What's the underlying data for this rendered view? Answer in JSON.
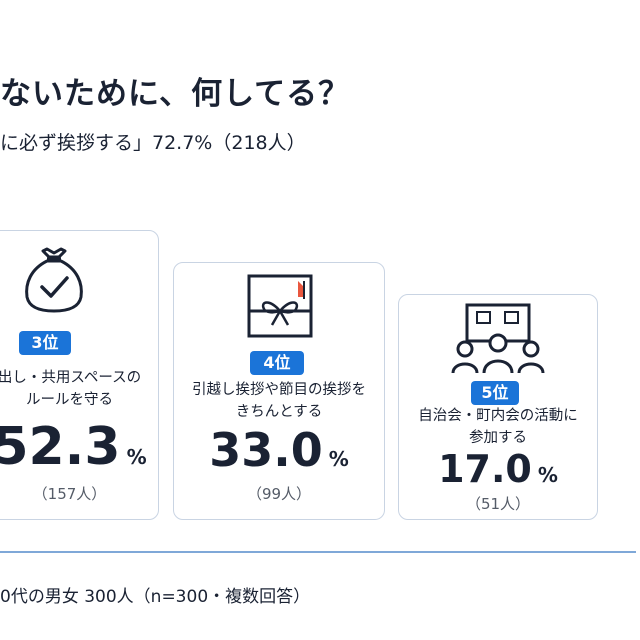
{
  "header": {
    "title": "ないために、何してる？",
    "subtitle": "に必ず挨拶する」72.7%（218人）"
  },
  "chart_data": {
    "type": "bar",
    "title": "ないために、何してる？",
    "categories": [
      "出し・共用スペースのルールを守る",
      "引越し挨拶や節目の挨拶をきちんとする",
      "自治会・町内会の活動に参加する"
    ],
    "values": [
      52.3,
      33.0,
      17.0
    ],
    "counts": [
      157,
      99,
      51
    ],
    "ranks": [
      3,
      4,
      5
    ],
    "unit": "%"
  },
  "cards": [
    {
      "rank_label": "3位",
      "label_lines": [
        "出し・共用スペースの",
        "ルールを守る"
      ],
      "percent": "52.3",
      "percent_sign": "%",
      "count": "（157人）",
      "icon": "garbage-bag-check-icon"
    },
    {
      "rank_label": "4位",
      "label_lines": [
        "引越し挨拶や節目の挨拶を",
        "きちんとする"
      ],
      "percent": "33.0",
      "percent_sign": "%",
      "count": "（99人）",
      "icon": "gift-box-icon"
    },
    {
      "rank_label": "5位",
      "label_lines": [
        "自治会・町内会の活動に",
        "参加する"
      ],
      "percent": "17.0",
      "percent_sign": "%",
      "count": "（51人）",
      "icon": "community-meeting-icon"
    }
  ],
  "footer": {
    "survey_note": "0代の男女 300人（n=300・複数回答）"
  },
  "colors": {
    "accent": "#1b74d8",
    "text": "#1a2233",
    "card_border": "#c9d4e3",
    "divider": "#7fa8d8"
  }
}
